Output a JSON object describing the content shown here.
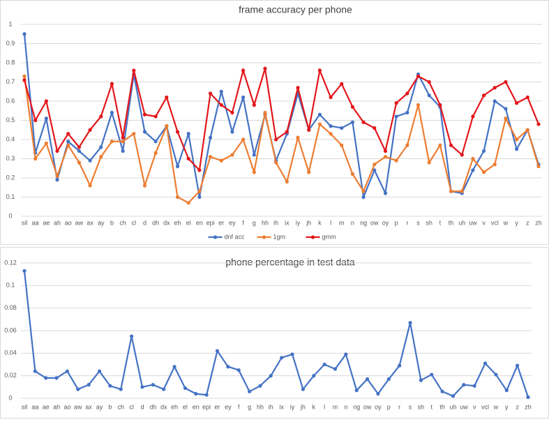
{
  "chart_data": [
    {
      "type": "line",
      "title": "frame accuracy per phone",
      "categories": [
        "sil",
        "aa",
        "ae",
        "ah",
        "ao",
        "aw",
        "ax",
        "ay",
        "b",
        "ch",
        "cl",
        "d",
        "dh",
        "dx",
        "eh",
        "el",
        "en",
        "epi",
        "er",
        "ey",
        "f",
        "g",
        "hh",
        "ih",
        "ix",
        "iy",
        "jh",
        "k",
        "l",
        "m",
        "n",
        "ng",
        "ow",
        "oy",
        "p",
        "r",
        "s",
        "sh",
        "t",
        "th",
        "uh",
        "uw",
        "v",
        "vcl",
        "w",
        "y",
        "z",
        "zh"
      ],
      "series": [
        {
          "name": "dnf acc",
          "color": "#4472c4",
          "values": [
            0.95,
            0.33,
            0.51,
            0.19,
            0.39,
            0.34,
            0.29,
            0.36,
            0.54,
            0.34,
            0.74,
            0.44,
            0.39,
            0.47,
            0.26,
            0.43,
            0.1,
            0.41,
            0.65,
            0.44,
            0.62,
            0.32,
            0.53,
            0.29,
            0.43,
            0.64,
            0.45,
            0.53,
            0.47,
            0.46,
            0.49,
            0.1,
            0.24,
            0.12,
            0.52,
            0.54,
            0.74,
            0.63,
            0.57,
            0.13,
            0.12,
            0.24,
            0.34,
            0.6,
            0.56,
            0.35,
            0.45,
            0.27
          ]
        },
        {
          "name": "1gm",
          "color": "#ed7d31",
          "values": [
            0.73,
            0.3,
            0.38,
            0.21,
            0.37,
            0.28,
            0.16,
            0.31,
            0.39,
            0.39,
            0.43,
            0.16,
            0.33,
            0.47,
            0.1,
            0.07,
            0.13,
            0.31,
            0.29,
            0.32,
            0.4,
            0.23,
            0.54,
            0.28,
            0.18,
            0.41,
            0.23,
            0.48,
            0.43,
            0.37,
            0.22,
            0.13,
            0.27,
            0.31,
            0.29,
            0.37,
            0.58,
            0.28,
            0.37,
            0.13,
            0.13,
            0.3,
            0.23,
            0.27,
            0.51,
            0.4,
            0.45,
            0.26
          ]
        },
        {
          "name": "gmm",
          "color": "#e3161b",
          "values": [
            0.71,
            0.5,
            0.6,
            0.34,
            0.43,
            0.36,
            0.45,
            0.52,
            0.69,
            0.41,
            0.76,
            0.53,
            0.52,
            0.62,
            0.44,
            0.3,
            0.24,
            0.64,
            0.58,
            0.54,
            0.76,
            0.58,
            0.77,
            0.4,
            0.44,
            0.67,
            0.45,
            0.76,
            0.62,
            0.69,
            0.57,
            0.49,
            0.46,
            0.34,
            0.59,
            0.64,
            0.73,
            0.7,
            0.58,
            0.37,
            0.32,
            0.52,
            0.63,
            0.67,
            0.7,
            0.59,
            0.62,
            0.48
          ]
        }
      ],
      "ylim": [
        0,
        1
      ],
      "yticks": [
        0,
        0.1,
        0.2,
        0.3,
        0.4,
        0.5,
        0.6,
        0.7,
        0.8,
        0.9,
        1
      ],
      "grid": true,
      "legend": "bottom"
    },
    {
      "type": "line",
      "title": "phone percentage in test data",
      "categories": [
        "sil",
        "aa",
        "ae",
        "ah",
        "ao",
        "aw",
        "ax",
        "ay",
        "b",
        "ch",
        "cl",
        "d",
        "dh",
        "dx",
        "eh",
        "el",
        "en",
        "epi",
        "er",
        "ey",
        "f",
        "g",
        "hh",
        "ih",
        "ix",
        "iy",
        "jh",
        "k",
        "l",
        "m",
        "n",
        "ng",
        "ow",
        "oy",
        "p",
        "r",
        "s",
        "sh",
        "t",
        "th",
        "uh",
        "uw",
        "v",
        "vcl",
        "w",
        "y",
        "z",
        "zh"
      ],
      "values": [
        0.113,
        0.024,
        0.018,
        0.018,
        0.024,
        0.008,
        0.012,
        0.024,
        0.011,
        0.008,
        0.055,
        0.01,
        0.012,
        0.008,
        0.028,
        0.009,
        0.004,
        0.003,
        0.042,
        0.028,
        0.025,
        0.006,
        0.011,
        0.02,
        0.036,
        0.039,
        0.008,
        0.02,
        0.03,
        0.026,
        0.039,
        0.007,
        0.017,
        0.004,
        0.017,
        0.029,
        0.067,
        0.016,
        0.021,
        0.006,
        0.002,
        0.012,
        0.011,
        0.031,
        0.021,
        0.007,
        0.029,
        0.001
      ],
      "color": "#4472c4",
      "ylim": [
        0,
        0.12
      ],
      "yticks": [
        0,
        0.02,
        0.04,
        0.06,
        0.08,
        0.1,
        0.12
      ],
      "grid": true
    }
  ]
}
